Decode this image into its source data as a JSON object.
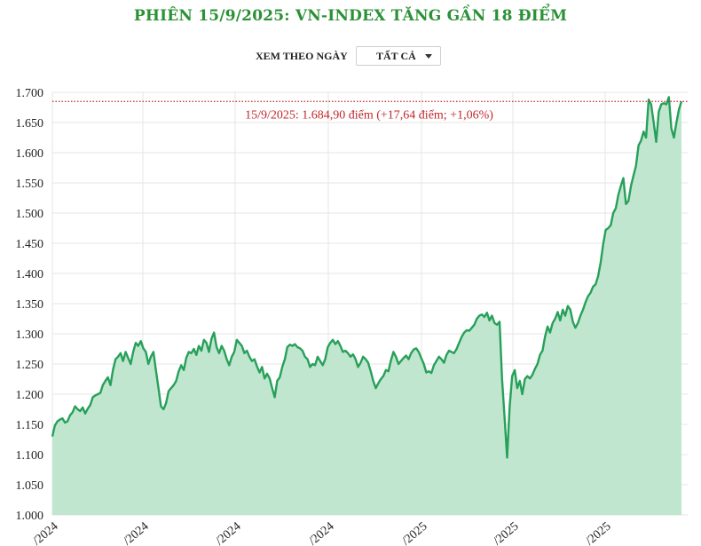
{
  "title": "PHIÊN 15/9/2025: VN-INDEX TĂNG GẦN 18 ĐIỂM",
  "filter": {
    "label": "XEM THEO NGÀY",
    "selected": "TẤT CẢ"
  },
  "colors": {
    "title": "#2a9135",
    "line": "#27a05a",
    "area": "#bde5cc",
    "reference_line": "#c0272d",
    "grid": "#e6e6e6"
  },
  "chart_data": {
    "type": "area",
    "title": "PHIÊN 15/9/2025: VN-INDEX TĂNG GẦN 18 ĐIỂM",
    "xlabel": "",
    "ylabel": "",
    "ylim": [
      1000,
      1700
    ],
    "yticks": [
      "1.000",
      "1.050",
      "1.100",
      "1.150",
      "1.200",
      "1.250",
      "1.300",
      "1.350",
      "1.400",
      "1.450",
      "1.500",
      "1.550",
      "1.600",
      "1.650",
      "1.700"
    ],
    "xticks": [
      "…/2024",
      "…/2024",
      "…/2024",
      "…/2024",
      "…/2025",
      "…/2025",
      "…/2025"
    ],
    "grid": true,
    "legend": "none",
    "reference_line": {
      "value": 1684.9,
      "style": "dotted",
      "label": "15/9/2025: 1.684,90 điểm (+17,64 điểm; +1,06%)"
    },
    "series": [
      {
        "name": "VN-Index",
        "values": [
          1130,
          1148,
          1155,
          1158,
          1160,
          1153,
          1155,
          1165,
          1170,
          1180,
          1175,
          1172,
          1178,
          1168,
          1176,
          1182,
          1195,
          1198,
          1200,
          1202,
          1215,
          1222,
          1228,
          1215,
          1240,
          1258,
          1262,
          1268,
          1255,
          1270,
          1260,
          1250,
          1270,
          1285,
          1280,
          1288,
          1276,
          1270,
          1250,
          1262,
          1270,
          1240,
          1210,
          1180,
          1175,
          1185,
          1205,
          1210,
          1215,
          1222,
          1238,
          1248,
          1240,
          1260,
          1270,
          1268,
          1275,
          1265,
          1280,
          1272,
          1290,
          1285,
          1270,
          1292,
          1302,
          1278,
          1268,
          1280,
          1272,
          1258,
          1248,
          1262,
          1270,
          1290,
          1285,
          1280,
          1268,
          1272,
          1262,
          1255,
          1258,
          1246,
          1236,
          1245,
          1226,
          1234,
          1226,
          1210,
          1195,
          1222,
          1228,
          1245,
          1258,
          1278,
          1282,
          1280,
          1283,
          1278,
          1276,
          1272,
          1262,
          1258,
          1245,
          1250,
          1248,
          1262,
          1255,
          1248,
          1258,
          1278,
          1285,
          1290,
          1283,
          1288,
          1280,
          1270,
          1272,
          1268,
          1262,
          1266,
          1258,
          1245,
          1252,
          1262,
          1258,
          1252,
          1238,
          1222,
          1210,
          1218,
          1225,
          1230,
          1240,
          1238,
          1256,
          1270,
          1262,
          1250,
          1255,
          1260,
          1264,
          1258,
          1268,
          1274,
          1276,
          1270,
          1260,
          1250,
          1236,
          1238,
          1235,
          1248,
          1255,
          1262,
          1258,
          1252,
          1265,
          1272,
          1270,
          1268,
          1275,
          1285,
          1295,
          1302,
          1306,
          1305,
          1310,
          1315,
          1325,
          1330,
          1332,
          1328,
          1335,
          1322,
          1330,
          1318,
          1315,
          1320,
          1225,
          1160,
          1095,
          1180,
          1230,
          1240,
          1210,
          1222,
          1200,
          1225,
          1230,
          1226,
          1232,
          1242,
          1250,
          1265,
          1272,
          1295,
          1312,
          1302,
          1318,
          1325,
          1336,
          1322,
          1340,
          1330,
          1346,
          1340,
          1320,
          1310,
          1318,
          1330,
          1340,
          1352,
          1362,
          1368,
          1378,
          1382,
          1395,
          1418,
          1448,
          1472,
          1475,
          1480,
          1500,
          1508,
          1530,
          1545,
          1558,
          1515,
          1520,
          1545,
          1562,
          1578,
          1612,
          1620,
          1635,
          1625,
          1688,
          1680,
          1650,
          1618,
          1668,
          1680,
          1682,
          1680,
          1692,
          1640,
          1625,
          1650,
          1672,
          1684.9
        ]
      }
    ]
  }
}
